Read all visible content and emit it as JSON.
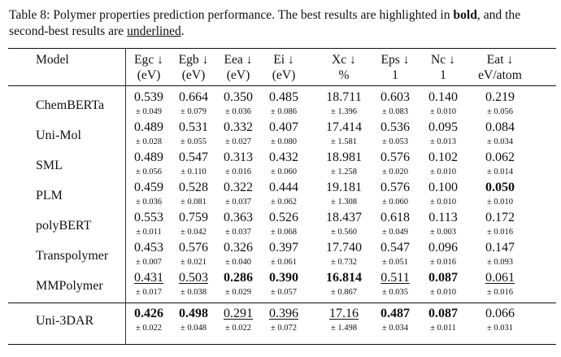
{
  "caption": {
    "prefix": "Table 8: Polymer properties prediction performance. The best results are highlighted in ",
    "bold_word": "bold",
    "middle": ", and the second-best results are ",
    "underline_word": "underlined",
    "suffix": "."
  },
  "header": {
    "model_label": "Model",
    "columns": [
      {
        "name": "Egc ↓",
        "unit": "(eV)"
      },
      {
        "name": "Egb ↓",
        "unit": "(eV)"
      },
      {
        "name": "Eea ↓",
        "unit": "(eV)"
      },
      {
        "name": "Ei ↓",
        "unit": "(eV)"
      },
      {
        "name": "Xc ↓",
        "unit": "%"
      },
      {
        "name": "Eps ↓",
        "unit": "1"
      },
      {
        "name": "Nc ↓",
        "unit": "1"
      },
      {
        "name": "Eat ↓",
        "unit": "eV/atom"
      }
    ]
  },
  "rows": [
    {
      "model": "ChemBERTa",
      "values": [
        "0.539",
        "0.664",
        "0.350",
        "0.485",
        "18.711",
        "0.603",
        "0.140",
        "0.219"
      ],
      "stds": [
        "± 0.049",
        "± 0.079",
        "± 0.036",
        "± 0.086",
        "± 1.396",
        "± 0.083",
        "± 0.010",
        "± 0.056"
      ],
      "styles": [
        "",
        "",
        "",
        "",
        "",
        "",
        "",
        ""
      ]
    },
    {
      "model": "Uni-Mol",
      "values": [
        "0.489",
        "0.531",
        "0.332",
        "0.407",
        "17.414",
        "0.536",
        "0.095",
        "0.084"
      ],
      "stds": [
        "± 0.028",
        "± 0.055",
        "± 0.027",
        "± 0.080",
        "± 1.581",
        "± 0.053",
        "± 0.013",
        "± 0.034"
      ],
      "styles": [
        "",
        "",
        "",
        "",
        "",
        "",
        "",
        ""
      ]
    },
    {
      "model": "SML",
      "values": [
        "0.489",
        "0.547",
        "0.313",
        "0.432",
        "18.981",
        "0.576",
        "0.102",
        "0.062"
      ],
      "stds": [
        "± 0.056",
        "± 0.110",
        "± 0.016",
        "± 0.060",
        "± 1.258",
        "± 0.020",
        "± 0.010",
        "± 0.014"
      ],
      "styles": [
        "",
        "",
        "",
        "",
        "",
        "",
        "",
        ""
      ]
    },
    {
      "model": "PLM",
      "values": [
        "0.459",
        "0.528",
        "0.322",
        "0.444",
        "19.181",
        "0.576",
        "0.100",
        "0.050"
      ],
      "stds": [
        "± 0.036",
        "± 0.081",
        "± 0.037",
        "± 0.062",
        "± 1.308",
        "± 0.060",
        "± 0.010",
        "± 0.010"
      ],
      "styles": [
        "",
        "",
        "",
        "",
        "",
        "",
        "",
        "bold"
      ]
    },
    {
      "model": "polyBERT",
      "values": [
        "0.553",
        "0.759",
        "0.363",
        "0.526",
        "18.437",
        "0.618",
        "0.113",
        "0.172"
      ],
      "stds": [
        "± 0.011",
        "± 0.042",
        "± 0.037",
        "± 0.068",
        "± 0.560",
        "± 0.049",
        "± 0.003",
        "± 0.016"
      ],
      "styles": [
        "",
        "",
        "",
        "",
        "",
        "",
        "",
        ""
      ]
    },
    {
      "model": "Transpolymer",
      "values": [
        "0.453",
        "0.576",
        "0.326",
        "0.397",
        "17.740",
        "0.547",
        "0.096",
        "0.147"
      ],
      "stds": [
        "± 0.007",
        "± 0.021",
        "± 0.040",
        "± 0.061",
        "± 0.732",
        "± 0.051",
        "± 0.016",
        "± 0.093"
      ],
      "styles": [
        "",
        "",
        "",
        "",
        "",
        "",
        "",
        ""
      ]
    },
    {
      "model": "MMPolymer",
      "values": [
        "0.431",
        "0.503",
        "0.286",
        "0.390",
        "16.814",
        "0.511",
        "0.087",
        "0.061"
      ],
      "stds": [
        "± 0.017",
        "± 0.038",
        "± 0.029",
        "± 0.057",
        "± 0.867",
        "± 0.035",
        "± 0.010",
        "± 0.016"
      ],
      "styles": [
        "underline",
        "underline",
        "bold",
        "bold",
        "bold",
        "underline",
        "bold",
        "underline"
      ]
    },
    {
      "model": "Uni-3DAR",
      "values": [
        "0.426",
        "0.498",
        "0.291",
        "0.396",
        "17.16",
        "0.487",
        "0.087",
        "0.066"
      ],
      "stds": [
        "± 0.022",
        "± 0.048",
        "± 0.022",
        "± 0.072",
        "± 1.498",
        "± 0.034",
        "± 0.011",
        "± 0.031"
      ],
      "styles": [
        "bold",
        "bold",
        "underline",
        "underline",
        "underline",
        "bold",
        "bold",
        ""
      ]
    }
  ]
}
